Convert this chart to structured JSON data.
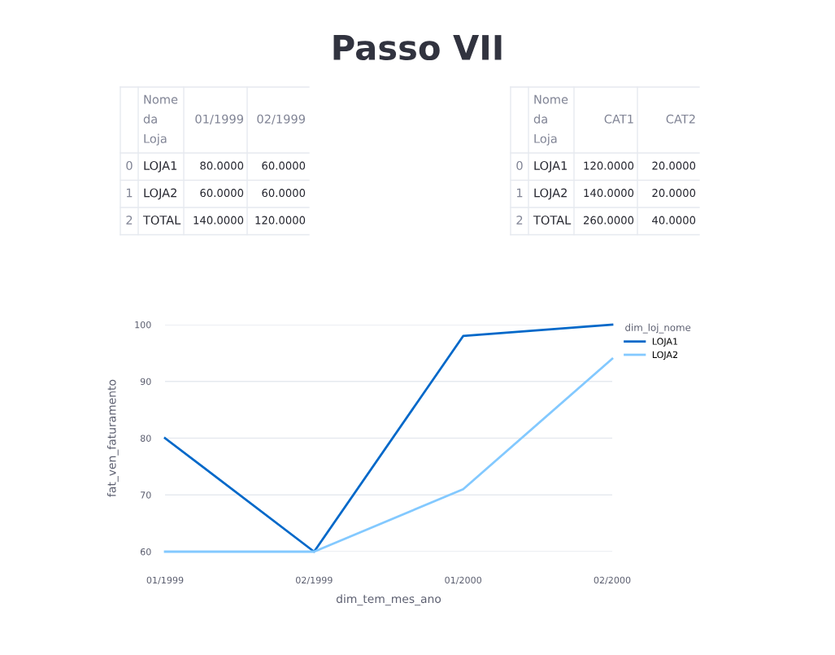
{
  "chart_data": [
    {
      "type": "other",
      "title": "Passo VII",
      "categories": [
        null,
        "Nome da Loja",
        "01/1999",
        "02/1999"
      ],
      "y_categories": [
        "0",
        "1",
        "2"
      ],
      "cell_labels": [
        [
          "LOJA1",
          "80.0000",
          "60.0000"
        ],
        [
          "LOJA2",
          "60.0000",
          "60.0000"
        ],
        [
          "TOTAL",
          "140.0000",
          "120.0000"
        ]
      ]
    },
    {
      "type": "other",
      "categories": [
        null,
        "Nome da Loja",
        "CAT1",
        "CAT2"
      ],
      "y_categories": [
        "0",
        "1",
        "2"
      ],
      "cell_labels": [
        [
          "LOJA1",
          "120.0000",
          "20.0000"
        ],
        [
          "LOJA2",
          "140.0000",
          "20.0000"
        ],
        [
          "TOTAL",
          "260.0000",
          "40.0000"
        ]
      ]
    },
    {
      "type": "line",
      "xlabel": "dim_tem_mes_ano",
      "ylabel": "fat_ven_faturamento",
      "legend_title": "dim_loj_nome",
      "categories": [
        "01/1999",
        "02/1999",
        "01/2000",
        "02/2000"
      ],
      "series": [
        {
          "name": "LOJA1",
          "color": "#0068c9",
          "values": [
            80,
            60,
            98,
            100
          ]
        },
        {
          "name": "LOJA2",
          "color": "#83c9ff",
          "values": [
            60,
            60,
            71,
            94
          ]
        }
      ],
      "ylim": [
        60,
        100
      ],
      "yticks": [
        60,
        70,
        80,
        90,
        100
      ],
      "grid": "y",
      "legend": "top right",
      "marker": "none",
      "line_style": "solid"
    }
  ]
}
